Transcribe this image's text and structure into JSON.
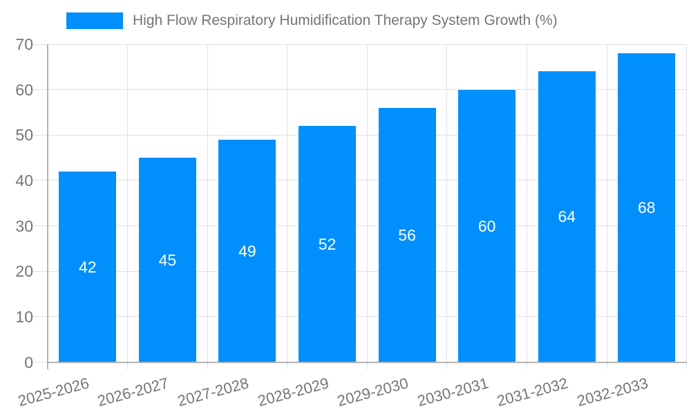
{
  "chart_data": {
    "type": "bar",
    "title": "High Flow Respiratory Humidification Therapy System Growth (%)",
    "categories": [
      "2025-2026",
      "2026-2027",
      "2027-2028",
      "2028-2029",
      "2029-2030",
      "2030-2031",
      "2031-2032",
      "2032-2033"
    ],
    "values": [
      42,
      45,
      49,
      52,
      56,
      60,
      64,
      68
    ],
    "xlabel": "",
    "ylabel": "",
    "ylim": [
      0,
      70
    ],
    "yticks": [
      0,
      10,
      20,
      30,
      40,
      50,
      60,
      70
    ],
    "grid": true,
    "legend_position": "top-left",
    "value_labels_inside_bars": true,
    "bar_color": "#008ffb",
    "value_label_color": "#ffffff",
    "axis_text_color": "#757575",
    "axis_line_color": "#b3b3b3",
    "gridline_color": "#e0e0e0"
  }
}
